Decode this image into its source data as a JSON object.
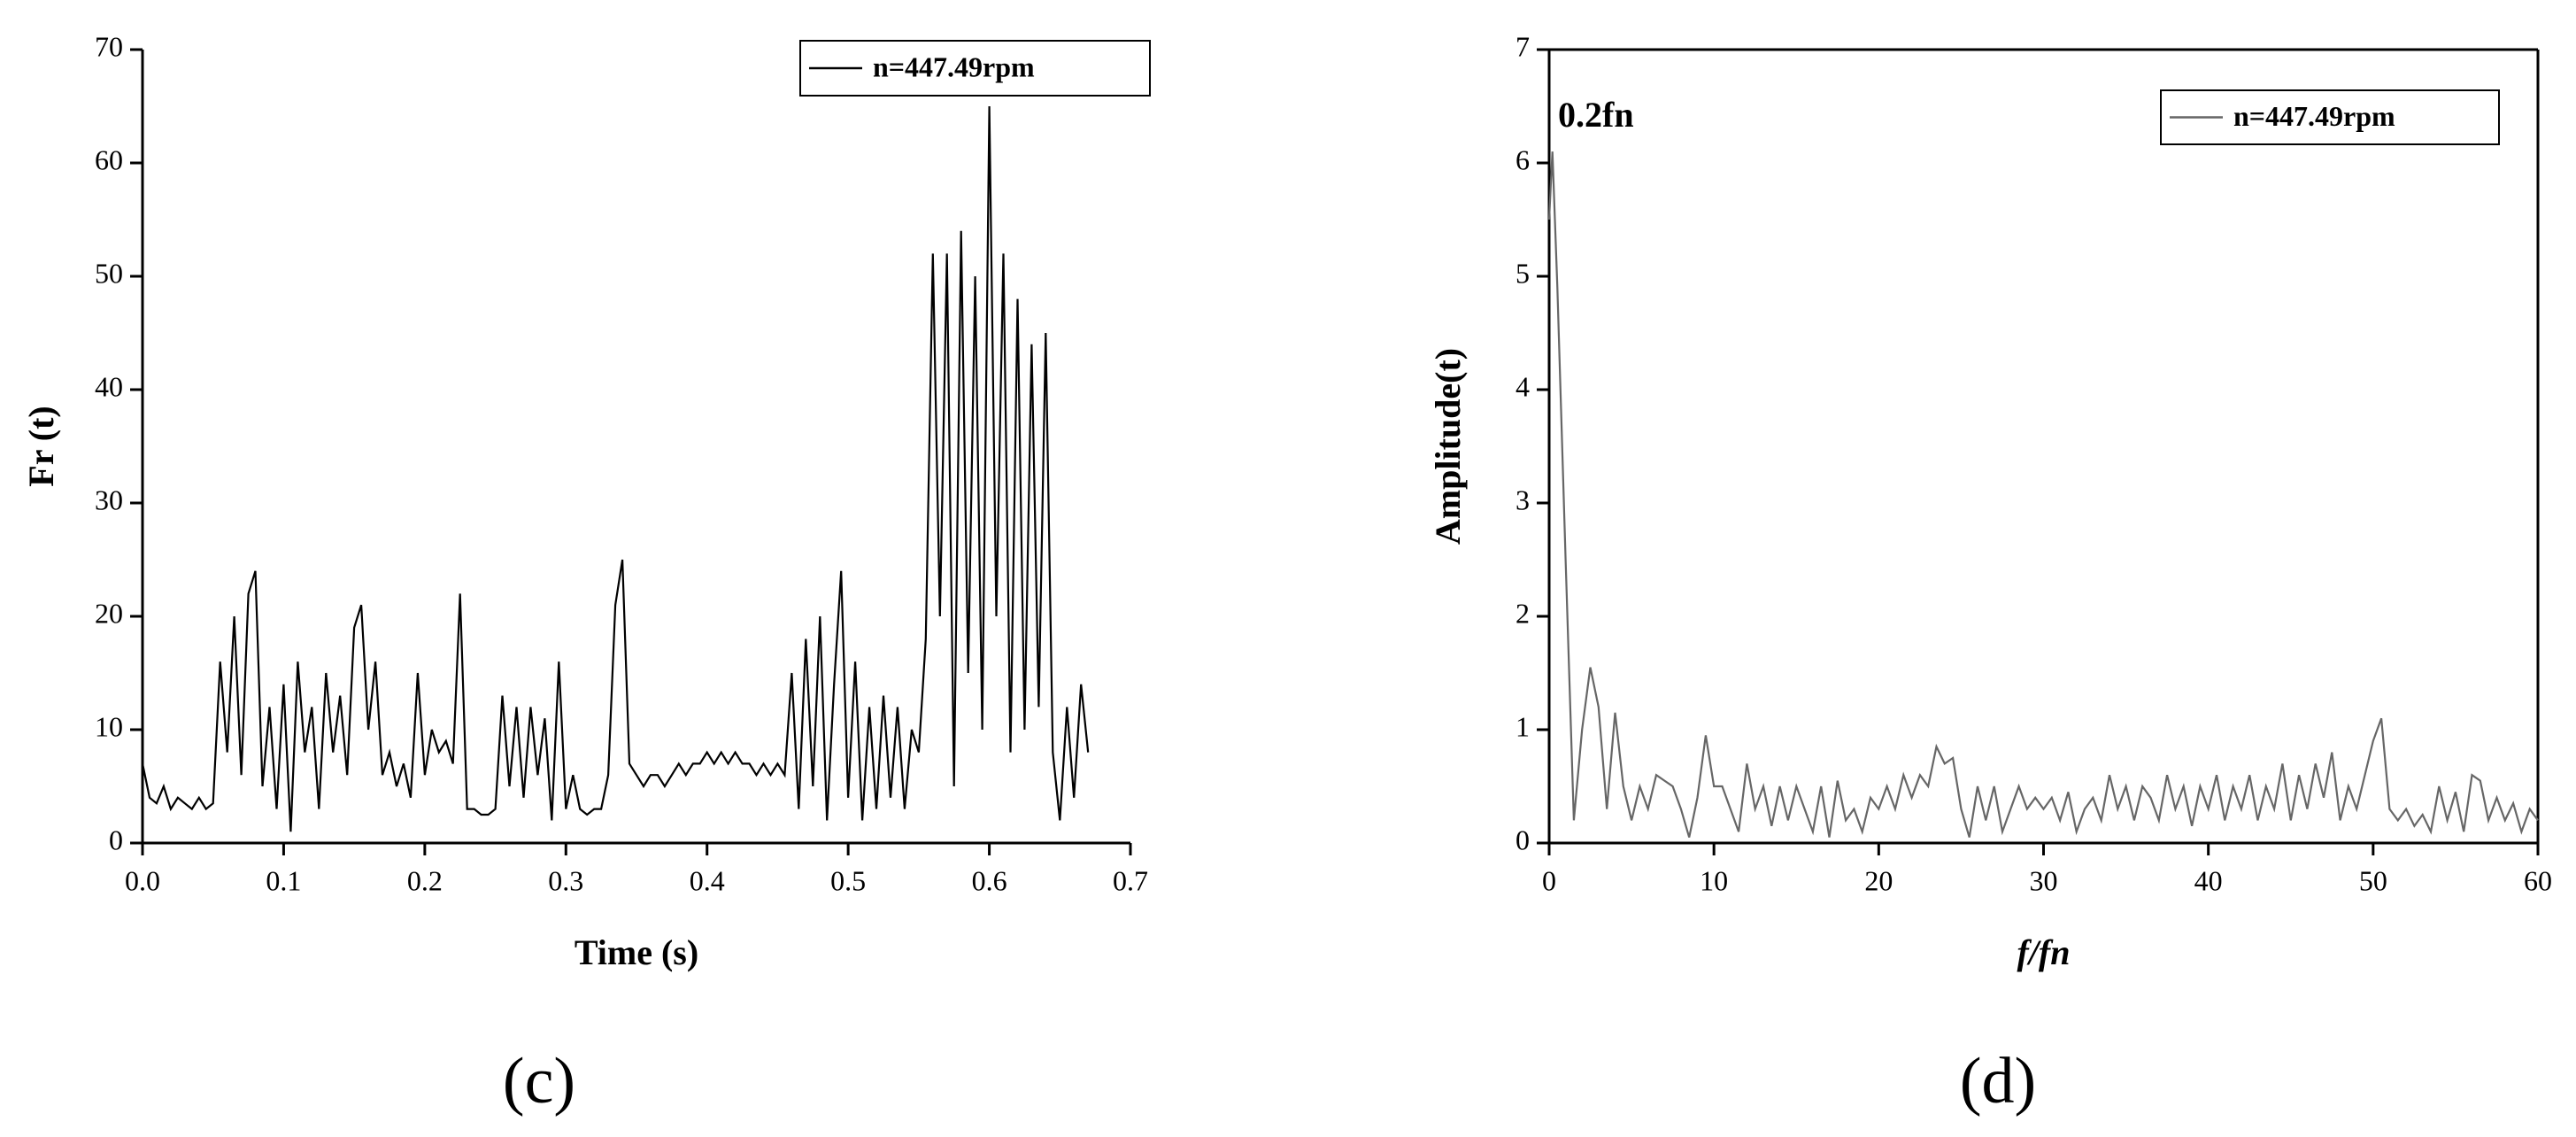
{
  "chart_data": [
    {
      "type": "line",
      "x_label": "Time (s)",
      "y_label": "Fr (t)",
      "panel_label": "(c)",
      "legend": "upper right",
      "frame": "axes",
      "xlim": [
        0,
        0.7
      ],
      "xticks": [
        {
          "value": 0,
          "label": "0.0"
        },
        0.1,
        0.2,
        0.3,
        0.4,
        0.5,
        0.6,
        0.7
      ],
      "ylim": [
        0,
        70
      ],
      "yticks": [
        0,
        10,
        20,
        30,
        40,
        50,
        60,
        70
      ],
      "x": [
        0,
        0.005,
        0.01,
        0.015,
        0.02,
        0.025,
        0.03,
        0.035,
        0.04,
        0.045,
        0.05,
        0.055,
        0.06,
        0.065,
        0.07,
        0.075,
        0.08,
        0.085,
        0.09,
        0.095,
        0.1,
        0.105,
        0.11,
        0.115,
        0.12,
        0.125,
        0.13,
        0.135,
        0.14,
        0.145,
        0.15,
        0.155,
        0.16,
        0.165,
        0.17,
        0.175,
        0.18,
        0.185,
        0.19,
        0.195,
        0.2,
        0.205,
        0.21,
        0.215,
        0.22,
        0.225,
        0.23,
        0.235,
        0.24,
        0.245,
        0.25,
        0.255,
        0.26,
        0.265,
        0.27,
        0.275,
        0.28,
        0.285,
        0.29,
        0.295,
        0.3,
        0.305,
        0.31,
        0.315,
        0.32,
        0.325,
        0.33,
        0.335,
        0.34,
        0.345,
        0.35,
        0.355,
        0.36,
        0.365,
        0.37,
        0.375,
        0.38,
        0.385,
        0.39,
        0.395,
        0.4,
        0.405,
        0.41,
        0.415,
        0.42,
        0.425,
        0.43,
        0.435,
        0.44,
        0.445,
        0.45,
        0.455,
        0.46,
        0.465,
        0.47,
        0.475,
        0.48,
        0.485,
        0.49,
        0.495,
        0.5,
        0.505,
        0.51,
        0.515,
        0.52,
        0.525,
        0.53,
        0.535,
        0.54,
        0.545,
        0.55,
        0.555,
        0.56,
        0.565,
        0.57,
        0.575,
        0.58,
        0.585,
        0.59,
        0.595,
        0.6,
        0.605,
        0.61,
        0.615,
        0.62,
        0.625,
        0.63,
        0.635,
        0.64,
        0.645,
        0.65,
        0.655,
        0.66,
        0.665,
        0.67
      ],
      "series": [
        {
          "name": "n=447.49rpm",
          "color": "#000000",
          "values": [
            7,
            4,
            3.5,
            5,
            3,
            4,
            3.5,
            3,
            4,
            3,
            3.5,
            16,
            8,
            20,
            6,
            22,
            24,
            5,
            12,
            3,
            14,
            1,
            16,
            8,
            12,
            3,
            15,
            8,
            13,
            6,
            19,
            21,
            10,
            16,
            6,
            8,
            5,
            7,
            4,
            15,
            6,
            10,
            8,
            9,
            7,
            22,
            3,
            3,
            2.5,
            2.5,
            3,
            13,
            5,
            12,
            4,
            12,
            6,
            11,
            2,
            16,
            3,
            6,
            3,
            2.5,
            3,
            3,
            6,
            21,
            25,
            7,
            6,
            5,
            6,
            6,
            5,
            6,
            7,
            6,
            7,
            7,
            8,
            7,
            8,
            7,
            8,
            7,
            7,
            6,
            7,
            6,
            7,
            6,
            15,
            3,
            18,
            5,
            20,
            2,
            14,
            24,
            4,
            16,
            2,
            12,
            3,
            13,
            4,
            12,
            3,
            10,
            8,
            18,
            52,
            20,
            52,
            5,
            54,
            15,
            50,
            10,
            65,
            20,
            52,
            8,
            48,
            10,
            44,
            12,
            45,
            8,
            2,
            12,
            4,
            14,
            8
          ]
        }
      ]
    },
    {
      "type": "line",
      "x_label": "f/fn",
      "y_label": "Amplitude(t)",
      "panel_label": "(d)",
      "legend": "upper right",
      "frame": "box",
      "annotation": {
        "text": "0.2fn",
        "color": "#e00000"
      },
      "xlim": [
        0,
        60
      ],
      "xticks": [
        0,
        10,
        20,
        30,
        40,
        50,
        60
      ],
      "ylim": [
        0,
        7
      ],
      "yticks": [
        0,
        1,
        2,
        3,
        4,
        5,
        6,
        7
      ],
      "x": [
        0,
        0.2,
        0.5,
        1,
        1.5,
        2,
        2.5,
        3,
        3.5,
        4,
        4.5,
        5,
        5.5,
        6,
        6.5,
        7,
        7.5,
        8,
        8.5,
        9,
        9.5,
        10,
        10.5,
        11,
        11.5,
        12,
        12.5,
        13,
        13.5,
        14,
        14.5,
        15,
        15.5,
        16,
        16.5,
        17,
        17.5,
        18,
        18.5,
        19,
        19.5,
        20,
        20.5,
        21,
        21.5,
        22,
        22.5,
        23,
        23.5,
        24,
        24.5,
        25,
        25.5,
        26,
        26.5,
        27,
        27.5,
        28,
        28.5,
        29,
        29.5,
        30,
        30.5,
        31,
        31.5,
        32,
        32.5,
        33,
        33.5,
        34,
        34.5,
        35,
        35.5,
        36,
        36.5,
        37,
        37.5,
        38,
        38.5,
        39,
        39.5,
        40,
        40.5,
        41,
        41.5,
        42,
        42.5,
        43,
        43.5,
        44,
        44.5,
        45,
        45.5,
        46,
        46.5,
        47,
        47.5,
        48,
        48.5,
        49,
        49.5,
        50,
        50.5,
        51,
        51.5,
        52,
        52.5,
        53,
        53.5,
        54,
        54.5,
        55,
        55.5,
        56,
        56.5,
        57,
        57.5,
        58,
        58.5,
        59,
        59.5,
        60
      ],
      "series": [
        {
          "name": "n=447.49rpm",
          "color": "#666666",
          "values": [
            5.5,
            6.1,
            4.9,
            2.5,
            0.2,
            1.0,
            1.55,
            1.2,
            0.3,
            1.15,
            0.5,
            0.2,
            0.5,
            0.3,
            0.6,
            0.55,
            0.5,
            0.3,
            0.05,
            0.4,
            0.95,
            0.5,
            0.5,
            0.3,
            0.1,
            0.7,
            0.3,
            0.5,
            0.15,
            0.5,
            0.2,
            0.5,
            0.3,
            0.1,
            0.5,
            0.05,
            0.55,
            0.2,
            0.3,
            0.1,
            0.4,
            0.3,
            0.5,
            0.3,
            0.6,
            0.4,
            0.6,
            0.5,
            0.85,
            0.7,
            0.75,
            0.3,
            0.05,
            0.5,
            0.2,
            0.5,
            0.1,
            0.3,
            0.5,
            0.3,
            0.4,
            0.3,
            0.4,
            0.2,
            0.45,
            0.1,
            0.3,
            0.4,
            0.2,
            0.6,
            0.3,
            0.5,
            0.2,
            0.5,
            0.4,
            0.2,
            0.6,
            0.3,
            0.5,
            0.15,
            0.5,
            0.3,
            0.6,
            0.2,
            0.5,
            0.3,
            0.6,
            0.2,
            0.5,
            0.3,
            0.7,
            0.2,
            0.6,
            0.3,
            0.7,
            0.4,
            0.8,
            0.2,
            0.5,
            0.3,
            0.6,
            0.9,
            1.1,
            0.3,
            0.2,
            0.3,
            0.15,
            0.25,
            0.1,
            0.5,
            0.2,
            0.45,
            0.1,
            0.6,
            0.55,
            0.2,
            0.4,
            0.2,
            0.35,
            0.1,
            0.3,
            0.2
          ]
        }
      ]
    }
  ]
}
